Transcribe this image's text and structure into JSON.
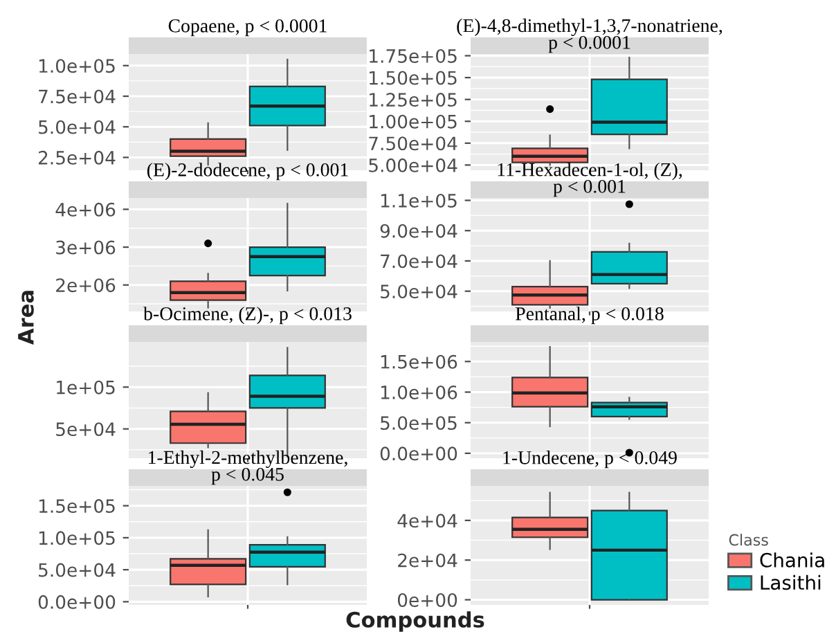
{
  "chart_data": [
    {
      "type": "box",
      "title": "Copaene, p < 0.0001",
      "categories": [
        null
      ],
      "ylim": [
        14500,
        109500
      ],
      "yticks": [
        {
          "value": 25000,
          "label": "2.5e+04"
        },
        {
          "value": 50000,
          "label": "5.0e+04"
        },
        {
          "value": 75000,
          "label": "7.5e+04"
        },
        {
          "value": 100000,
          "label": "1.0e+05"
        }
      ],
      "grid": true,
      "series": [
        {
          "color": "#f8766d",
          "boxes": [
            {
              "low": 19000,
              "q1": 26000,
              "median": 30000,
              "q3": 40000,
              "high": 53000
            }
          ]
        },
        {
          "color": "#00bfc4",
          "boxes": [
            {
              "low": 31000,
              "q1": 51000,
              "median": 67000,
              "q3": 83000,
              "high": 105000
            }
          ]
        }
      ]
    },
    {
      "type": "box",
      "title": "(E)-4,8-dimethyl-1,3,7-nonatriene,\np < 0.0001",
      "categories": [
        null
      ],
      "ylim": [
        44000,
        177000
      ],
      "yticks": [
        {
          "value": 50000,
          "label": "5.00e+04"
        },
        {
          "value": 75000,
          "label": "7.50e+04"
        },
        {
          "value": 100000,
          "label": "1.00e+05"
        },
        {
          "value": 125000,
          "label": "1.25e+05"
        },
        {
          "value": 150000,
          "label": "1.50e+05"
        },
        {
          "value": 175000,
          "label": "1.75e+05"
        }
      ],
      "grid": true,
      "series": [
        {
          "color": "#f8766d",
          "boxes": [
            {
              "low": 50000,
              "q1": 53000,
              "median": 60000,
              "q3": 69000,
              "high": 84000,
              "outliers": [
                114000
              ]
            }
          ]
        },
        {
          "color": "#00bfc4",
          "boxes": [
            {
              "low": 69000,
              "q1": 85000,
              "median": 99000,
              "q3": 148000,
              "high": 173000
            }
          ]
        }
      ]
    },
    {
      "type": "box",
      "title": "(E)-2-dodecene, p < 0.001",
      "ylabel": "Area",
      "categories": [
        null
      ],
      "ylim": [
        1300000,
        4300000
      ],
      "yticks": [
        {
          "value": 2000000,
          "label": "2e+06"
        },
        {
          "value": 3000000,
          "label": "3e+06"
        },
        {
          "value": 4000000,
          "label": "4e+06"
        }
      ],
      "grid": true,
      "series": [
        {
          "color": "#f8766d",
          "boxes": [
            {
              "low": 1400000,
              "q1": 1600000,
              "median": 1800000,
              "q3": 2100000,
              "high": 2300000,
              "outliers": [
                3100000
              ]
            }
          ]
        },
        {
          "color": "#00bfc4",
          "boxes": [
            {
              "low": 1850000,
              "q1": 2250000,
              "median": 2750000,
              "q3": 3000000,
              "high": 4150000
            }
          ]
        }
      ]
    },
    {
      "type": "box",
      "title": "11-Hexadecen-1-ol, (Z),\np < 0.001",
      "categories": [
        null
      ],
      "ylim": [
        36600,
        111600
      ],
      "yticks": [
        {
          "value": 50000,
          "label": "5.0e+04"
        },
        {
          "value": 70000,
          "label": "7.0e+04"
        },
        {
          "value": 90000,
          "label": "9.0e+04"
        },
        {
          "value": 110000,
          "label": "1.1e+05"
        }
      ],
      "grid": true,
      "series": [
        {
          "color": "#f8766d",
          "boxes": [
            {
              "low": 39000,
              "q1": 41000,
              "median": 47500,
              "q3": 53000,
              "high": 70000
            }
          ]
        },
        {
          "color": "#00bfc4",
          "boxes": [
            {
              "low": 52000,
              "q1": 55000,
              "median": 61000,
              "q3": 76000,
              "high": 81500,
              "outliers": [
                107500
              ]
            }
          ]
        }
      ]
    },
    {
      "type": "box",
      "title": "b-Ocimene, (Z)-, p < 0.013",
      "categories": [
        null
      ],
      "ylim": [
        15000,
        154000
      ],
      "yticks": [
        {
          "value": 50000,
          "label": "5e+04"
        },
        {
          "value": 100000,
          "label": "1e+05"
        }
      ],
      "grid": true,
      "series": [
        {
          "color": "#f8766d",
          "boxes": [
            {
              "low": 28000,
              "q1": 33000,
              "median": 55500,
              "q3": 71000,
              "high": 93000
            }
          ]
        },
        {
          "color": "#00bfc4",
          "boxes": [
            {
              "low": 17000,
              "q1": 75000,
              "median": 89000,
              "q3": 114000,
              "high": 147000
            }
          ]
        }
      ]
    },
    {
      "type": "box",
      "title": "Pentanal, p < 0.018",
      "categories": [
        null
      ],
      "ylim": [
        -80000,
        1820000
      ],
      "yticks": [
        {
          "value": 0,
          "label": "0.0e+00"
        },
        {
          "value": 500000,
          "label": "5.0e+05"
        },
        {
          "value": 1000000,
          "label": "1.0e+06"
        },
        {
          "value": 1500000,
          "label": "1.5e+06"
        }
      ],
      "grid": true,
      "series": [
        {
          "color": "#f8766d",
          "boxes": [
            {
              "low": 440000,
              "q1": 760000,
              "median": 985000,
              "q3": 1240000,
              "high": 1740000
            }
          ]
        },
        {
          "color": "#00bfc4",
          "boxes": [
            {
              "low": 560000,
              "q1": 600000,
              "median": 760000,
              "q3": 830000,
              "high": 910000,
              "outliers": [
                10000
              ]
            }
          ]
        }
      ]
    },
    {
      "type": "box",
      "title": "1-Ethyl-2-methylbenzene,\np < 0.045",
      "xlabel": "Compounds",
      "categories": [
        null
      ],
      "ylim": [
        -5000,
        181000
      ],
      "yticks": [
        {
          "value": 0,
          "label": "0.0e+00"
        },
        {
          "value": 50000,
          "label": "5.0e+04"
        },
        {
          "value": 100000,
          "label": "1.0e+05"
        },
        {
          "value": 150000,
          "label": "1.5e+05"
        }
      ],
      "grid": true,
      "series": [
        {
          "color": "#f8766d",
          "boxes": [
            {
              "low": 8000,
              "q1": 27000,
              "median": 57000,
              "q3": 67000,
              "high": 112000
            }
          ]
        },
        {
          "color": "#00bfc4",
          "boxes": [
            {
              "low": 27000,
              "q1": 54500,
              "median": 77500,
              "q3": 89000,
              "high": 101000,
              "outliers": [
                171000
              ]
            }
          ]
        }
      ]
    },
    {
      "type": "box",
      "title": "1-Undecene, p < 0.049",
      "categories": [
        null
      ],
      "ylim": [
        -2600,
        57400
      ],
      "yticks": [
        {
          "value": 0,
          "label": "0e+00"
        },
        {
          "value": 20000,
          "label": "2e+04"
        },
        {
          "value": 40000,
          "label": "4e+04"
        }
      ],
      "grid": true,
      "legend": "right",
      "legend_title": "Class",
      "series": [
        {
          "name": "Chania",
          "color": "#f8766d",
          "boxes": [
            {
              "low": 25500,
              "q1": 31500,
              "median": 35500,
              "q3": 41500,
              "high": 54000
            }
          ]
        },
        {
          "name": "Lasithi",
          "color": "#00bfc4",
          "boxes": [
            {
              "low": 0,
              "q1": 0,
              "median": 25000,
              "q3": 45000,
              "high": 54000
            }
          ]
        }
      ]
    }
  ]
}
